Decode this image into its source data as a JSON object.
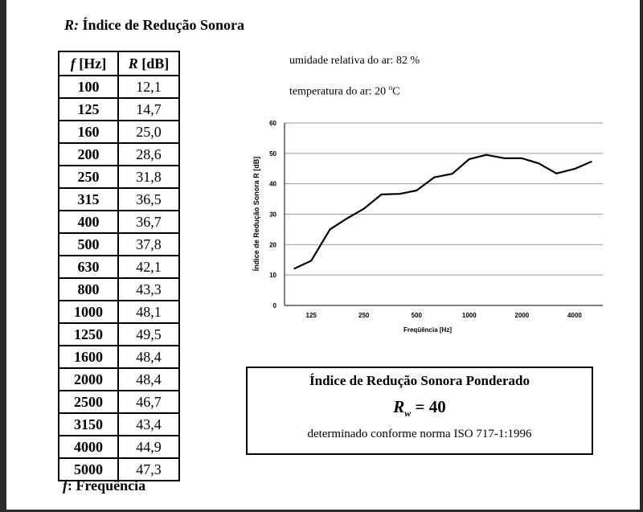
{
  "title": {
    "symbol": "R:",
    "text": "Índice de Redução Sonora"
  },
  "table": {
    "header_f_symbol": "f",
    "header_f_unit": "[Hz]",
    "header_r_symbol": "R",
    "header_r_unit": "[dB]",
    "rows": [
      {
        "f": "100",
        "r": "12,1"
      },
      {
        "f": "125",
        "r": "14,7"
      },
      {
        "f": "160",
        "r": "25,0"
      },
      {
        "f": "200",
        "r": "28,6"
      },
      {
        "f": "250",
        "r": "31,8"
      },
      {
        "f": "315",
        "r": "36,5"
      },
      {
        "f": "400",
        "r": "36,7"
      },
      {
        "f": "500",
        "r": "37,8"
      },
      {
        "f": "630",
        "r": "42,1"
      },
      {
        "f": "800",
        "r": "43,3"
      },
      {
        "f": "1000",
        "r": "48,1"
      },
      {
        "f": "1250",
        "r": "49,5"
      },
      {
        "f": "1600",
        "r": "48,4"
      },
      {
        "f": "2000",
        "r": "48,4"
      },
      {
        "f": "2500",
        "r": "46,7"
      },
      {
        "f": "3150",
        "r": "43,4"
      },
      {
        "f": "4000",
        "r": "44,9"
      },
      {
        "f": "5000",
        "r": "47,3"
      }
    ]
  },
  "footnote": {
    "symbol": "f",
    "text": ": Frequência"
  },
  "conditions": {
    "humidity": "umidade relativa do ar: 82 %",
    "temperature_prefix": "temperatura do ar: 20 ",
    "temperature_deg": "o",
    "temperature_unit": "C"
  },
  "chart_data": {
    "type": "line",
    "x": [
      100,
      125,
      160,
      200,
      250,
      315,
      400,
      500,
      630,
      800,
      1000,
      1250,
      1600,
      2000,
      2500,
      3150,
      4000,
      5000
    ],
    "series": [
      {
        "values": [
          12.1,
          14.7,
          25.0,
          28.6,
          31.8,
          36.5,
          36.7,
          37.8,
          42.1,
          43.3,
          48.1,
          49.5,
          48.4,
          48.4,
          46.7,
          43.4,
          44.9,
          47.3
        ]
      }
    ],
    "xscale": "log",
    "xticks": [
      "125",
      "250",
      "500",
      "1000",
      "2000",
      "4000"
    ],
    "yticks": [
      "0",
      "10",
      "20",
      "30",
      "40",
      "50",
      "60"
    ],
    "xlabel": "Freqüência [Hz]",
    "ylabel": "Índice de Redução Sonora R [dB]",
    "ylim": [
      0,
      60
    ],
    "grid": true,
    "line_color": "#000000"
  },
  "result": {
    "title": "Índice de Redução Sonora Ponderado",
    "symbol": "R",
    "subscript": "w",
    "value_text": " = 40",
    "note": "determinado conforme norma ISO 717-1:1996"
  }
}
